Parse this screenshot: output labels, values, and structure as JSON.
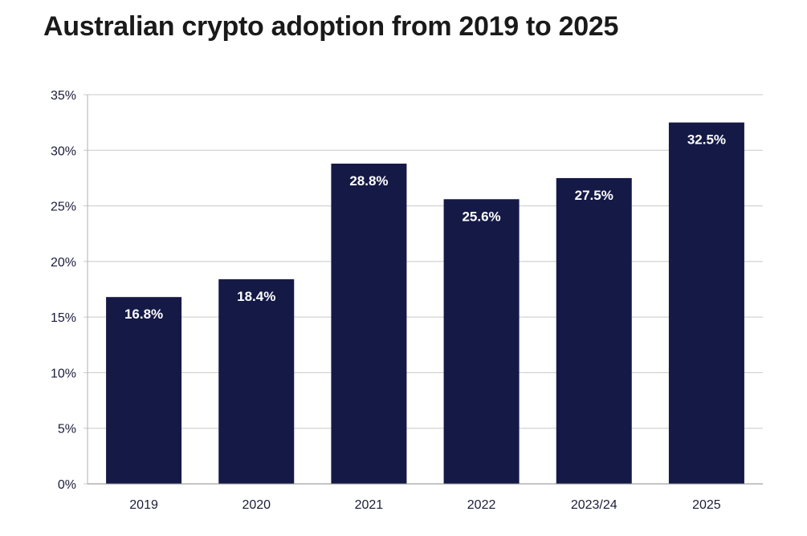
{
  "chart_data": {
    "type": "bar",
    "title": "Australian crypto adoption from 2019 to 2025",
    "categories": [
      "2019",
      "2020",
      "2021",
      "2022",
      "2023/24",
      "2025"
    ],
    "values": [
      16.8,
      18.4,
      28.8,
      25.6,
      27.5,
      32.5
    ],
    "data_labels": [
      "16.8%",
      "18.4%",
      "28.8%",
      "25.6%",
      "27.5%",
      "32.5%"
    ],
    "xlabel": "",
    "ylabel": "",
    "ylim": [
      0,
      35
    ],
    "yticks": [
      0,
      5,
      10,
      15,
      20,
      25,
      30,
      35
    ],
    "ytick_labels": [
      "0%",
      "5%",
      "10%",
      "15%",
      "20%",
      "25%",
      "30%",
      "35%"
    ],
    "grid": true,
    "legend": "none",
    "bar_color": "#151946",
    "grid_color": "#c8c8c8",
    "text_color": "#1b1c3a"
  }
}
